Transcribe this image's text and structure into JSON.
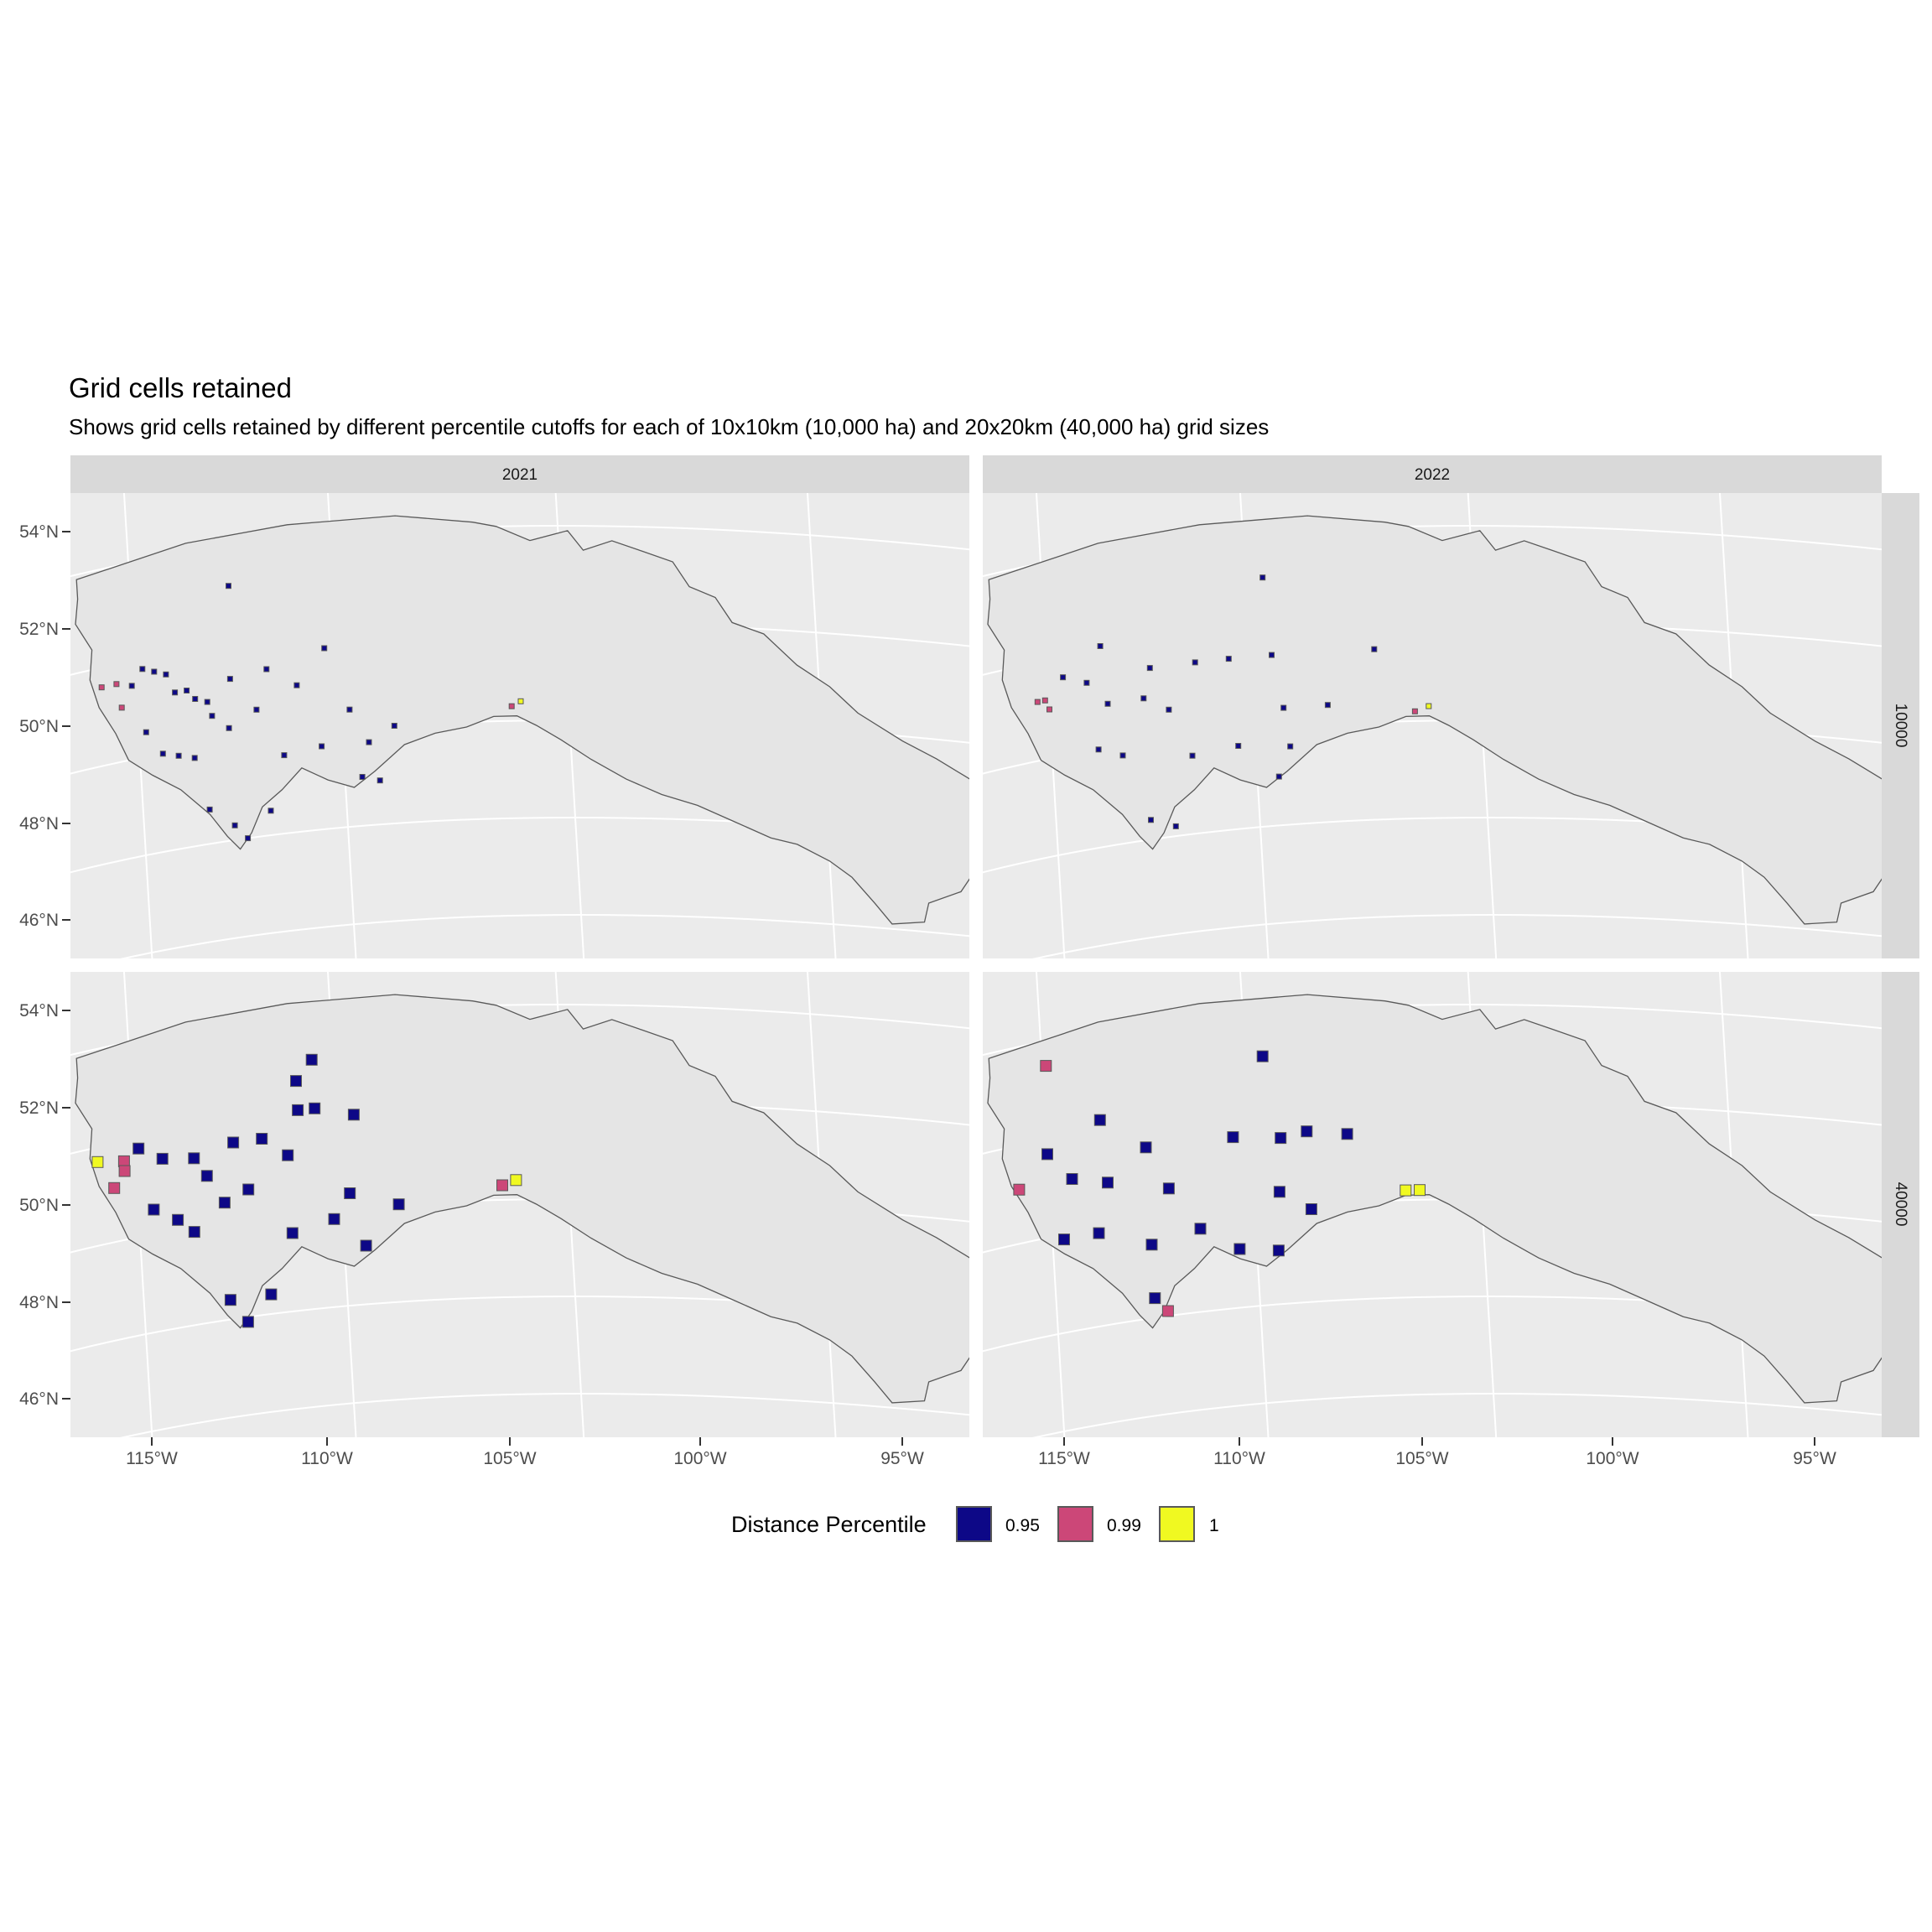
{
  "title": "Grid cells retained",
  "subtitle": "Shows grid cells retained by different percentile cutoffs for each of 10x10km (10,000 ha) and 20x20km (40,000 ha) grid sizes",
  "facets": {
    "columns": [
      "2021",
      "2022"
    ],
    "rows": [
      "10000",
      "40000"
    ]
  },
  "axes": {
    "y_ticks": [
      "54°N",
      "52°N",
      "50°N",
      "48°N",
      "46°N"
    ],
    "x_ticks": [
      "115°W",
      "110°W",
      "105°W",
      "100°W",
      "95°W"
    ]
  },
  "legend": {
    "title": "Distance Percentile",
    "items": [
      {
        "label": "0.95",
        "color": "#0d0887"
      },
      {
        "label": "0.99",
        "color": "#cc4778"
      },
      {
        "label": "1",
        "color": "#f0f921"
      }
    ]
  },
  "colors": {
    "panel_background": "#ebebeb",
    "grid_line": "#ffffff",
    "strip_background": "#d9d9d9",
    "region_fill": "#e5e5e5",
    "region_outline": "#595959"
  },
  "chart_data": {
    "type": "map",
    "projection": "conic (graticule curved)",
    "region": "Canadian Prairie provinces (Alberta, Saskatchewan, Manitoba)",
    "latitude_range": [
      45.5,
      55
    ],
    "longitude_range": [
      -117,
      -93
    ],
    "fill_variable": "Distance Percentile",
    "panels": [
      {
        "year": "2021",
        "grid_size_ha": "10000",
        "cells": [
          {
            "lon": -112.5,
            "lat": 53.2,
            "p": "0.95"
          },
          {
            "lon": -115.9,
            "lat": 51.6,
            "p": "0.99"
          },
          {
            "lon": -115.5,
            "lat": 51.6,
            "p": "0.99"
          },
          {
            "lon": -115.4,
            "lat": 51.1,
            "p": "0.99"
          },
          {
            "lon": -115.1,
            "lat": 51.5,
            "p": "0.95"
          },
          {
            "lon": -114.8,
            "lat": 51.8,
            "p": "0.95"
          },
          {
            "lon": -114.5,
            "lat": 51.7,
            "p": "0.95"
          },
          {
            "lon": -114.2,
            "lat": 51.6,
            "p": "0.95"
          },
          {
            "lon": -114.0,
            "lat": 51.2,
            "p": "0.95"
          },
          {
            "lon": -113.7,
            "lat": 51.2,
            "p": "0.95"
          },
          {
            "lon": -113.5,
            "lat": 51.0,
            "p": "0.95"
          },
          {
            "lon": -113.2,
            "lat": 50.9,
            "p": "0.95"
          },
          {
            "lon": -112.6,
            "lat": 51.3,
            "p": "0.95"
          },
          {
            "lon": -111.7,
            "lat": 51.4,
            "p": "0.95"
          },
          {
            "lon": -110.3,
            "lat": 51.7,
            "p": "0.95"
          },
          {
            "lon": -111.0,
            "lat": 51.0,
            "p": "0.95"
          },
          {
            "lon": -114.8,
            "lat": 50.5,
            "p": "0.95"
          },
          {
            "lon": -114.4,
            "lat": 50.0,
            "p": "0.95"
          },
          {
            "lon": -114.0,
            "lat": 49.9,
            "p": "0.95"
          },
          {
            "lon": -113.6,
            "lat": 49.8,
            "p": "0.95"
          },
          {
            "lon": -113.1,
            "lat": 50.6,
            "p": "0.95"
          },
          {
            "lon": -112.7,
            "lat": 50.3,
            "p": "0.95"
          },
          {
            "lon": -112.0,
            "lat": 50.6,
            "p": "0.95"
          },
          {
            "lon": -111.4,
            "lat": 49.6,
            "p": "0.95"
          },
          {
            "lon": -110.5,
            "lat": 49.7,
            "p": "0.95"
          },
          {
            "lon": -109.8,
            "lat": 50.4,
            "p": "0.95"
          },
          {
            "lon": -109.4,
            "lat": 49.7,
            "p": "0.95"
          },
          {
            "lon": -108.8,
            "lat": 50.0,
            "p": "0.95"
          },
          {
            "lon": -109.6,
            "lat": 49.0,
            "p": "0.95"
          },
          {
            "lon": -109.2,
            "lat": 48.9,
            "p": "0.95"
          },
          {
            "lon": -113.3,
            "lat": 48.7,
            "p": "0.95"
          },
          {
            "lon": -112.7,
            "lat": 48.3,
            "p": "0.95"
          },
          {
            "lon": -111.8,
            "lat": 48.5,
            "p": "0.95"
          },
          {
            "lon": -112.4,
            "lat": 48.0,
            "p": "0.95"
          },
          {
            "lon": -106.2,
            "lat": 50.3,
            "p": "0.99"
          },
          {
            "lon": -106.0,
            "lat": 50.4,
            "p": "1"
          }
        ]
      },
      {
        "year": "2022",
        "grid_size_ha": "10000",
        "cells": [
          {
            "lon": -109.6,
            "lat": 53.1,
            "p": "0.95"
          },
          {
            "lon": -113.6,
            "lat": 52.1,
            "p": "0.95"
          },
          {
            "lon": -115.3,
            "lat": 51.2,
            "p": "0.99"
          },
          {
            "lon": -115.1,
            "lat": 51.2,
            "p": "0.99"
          },
          {
            "lon": -115.0,
            "lat": 51.0,
            "p": "0.99"
          },
          {
            "lon": -114.6,
            "lat": 51.6,
            "p": "0.95"
          },
          {
            "lon": -114.0,
            "lat": 51.4,
            "p": "0.95"
          },
          {
            "lon": -112.4,
            "lat": 51.5,
            "p": "0.95"
          },
          {
            "lon": -111.3,
            "lat": 51.5,
            "p": "0.95"
          },
          {
            "lon": -110.5,
            "lat": 51.5,
            "p": "0.95"
          },
          {
            "lon": -109.5,
            "lat": 51.5,
            "p": "0.95"
          },
          {
            "lon": -107.2,
            "lat": 51.5,
            "p": "0.95"
          },
          {
            "lon": -113.5,
            "lat": 50.9,
            "p": "0.95"
          },
          {
            "lon": -112.6,
            "lat": 50.9,
            "p": "0.95"
          },
          {
            "lon": -112.0,
            "lat": 50.6,
            "p": "0.95"
          },
          {
            "lon": -113.8,
            "lat": 50.0,
            "p": "0.95"
          },
          {
            "lon": -113.2,
            "lat": 49.8,
            "p": "0.95"
          },
          {
            "lon": -111.5,
            "lat": 49.6,
            "p": "0.95"
          },
          {
            "lon": -110.4,
            "lat": 49.7,
            "p": "0.95"
          },
          {
            "lon": -109.3,
            "lat": 50.4,
            "p": "0.95"
          },
          {
            "lon": -108.3,
            "lat": 50.4,
            "p": "0.95"
          },
          {
            "lon": -109.2,
            "lat": 49.6,
            "p": "0.95"
          },
          {
            "lon": -109.5,
            "lat": 49.0,
            "p": "0.95"
          },
          {
            "lon": -112.6,
            "lat": 48.4,
            "p": "0.95"
          },
          {
            "lon": -112.0,
            "lat": 48.2,
            "p": "0.95"
          },
          {
            "lon": -106.4,
            "lat": 50.2,
            "p": "0.99"
          },
          {
            "lon": -106.1,
            "lat": 50.3,
            "p": "1"
          }
        ]
      },
      {
        "year": "2021",
        "grid_size_ha": "40000",
        "cells": [
          {
            "lon": -110.5,
            "lat": 53.1,
            "p": "0.95"
          },
          {
            "lon": -110.9,
            "lat": 52.7,
            "p": "0.95"
          },
          {
            "lon": -110.9,
            "lat": 52.1,
            "p": "0.95"
          },
          {
            "lon": -110.5,
            "lat": 52.1,
            "p": "0.95"
          },
          {
            "lon": -109.6,
            "lat": 51.9,
            "p": "0.95"
          },
          {
            "lon": -116.0,
            "lat": 51.7,
            "p": "1"
          },
          {
            "lon": -115.3,
            "lat": 51.6,
            "p": "0.99"
          },
          {
            "lon": -115.3,
            "lat": 51.4,
            "p": "0.99"
          },
          {
            "lon": -115.6,
            "lat": 51.1,
            "p": "0.99"
          },
          {
            "lon": -114.9,
            "lat": 51.8,
            "p": "0.95"
          },
          {
            "lon": -114.3,
            "lat": 51.5,
            "p": "0.95"
          },
          {
            "lon": -113.5,
            "lat": 51.4,
            "p": "0.95"
          },
          {
            "lon": -113.2,
            "lat": 51.0,
            "p": "0.95"
          },
          {
            "lon": -112.5,
            "lat": 51.6,
            "p": "0.95"
          },
          {
            "lon": -111.8,
            "lat": 51.6,
            "p": "0.95"
          },
          {
            "lon": -111.2,
            "lat": 51.2,
            "p": "0.95"
          },
          {
            "lon": -114.6,
            "lat": 50.5,
            "p": "0.95"
          },
          {
            "lon": -114.0,
            "lat": 50.2,
            "p": "0.95"
          },
          {
            "lon": -113.6,
            "lat": 49.9,
            "p": "0.95"
          },
          {
            "lon": -112.8,
            "lat": 50.4,
            "p": "0.95"
          },
          {
            "lon": -112.2,
            "lat": 50.6,
            "p": "0.95"
          },
          {
            "lon": -111.2,
            "lat": 49.6,
            "p": "0.95"
          },
          {
            "lon": -110.2,
            "lat": 49.8,
            "p": "0.95"
          },
          {
            "lon": -109.8,
            "lat": 50.3,
            "p": "0.95"
          },
          {
            "lon": -108.7,
            "lat": 50.0,
            "p": "0.95"
          },
          {
            "lon": -109.5,
            "lat": 49.2,
            "p": "0.95"
          },
          {
            "lon": -112.8,
            "lat": 48.4,
            "p": "0.95"
          },
          {
            "lon": -112.4,
            "lat": 47.9,
            "p": "0.95"
          },
          {
            "lon": -111.8,
            "lat": 48.4,
            "p": "0.95"
          },
          {
            "lon": -106.4,
            "lat": 50.3,
            "p": "0.99"
          },
          {
            "lon": -106.1,
            "lat": 50.4,
            "p": "1"
          }
        ]
      },
      {
        "year": "2022",
        "grid_size_ha": "40000",
        "cells": [
          {
            "lon": -114.9,
            "lat": 53.5,
            "p": "0.99"
          },
          {
            "lon": -109.6,
            "lat": 53.1,
            "p": "0.95"
          },
          {
            "lon": -113.6,
            "lat": 52.2,
            "p": "0.95"
          },
          {
            "lon": -115.8,
            "lat": 51.1,
            "p": "0.99"
          },
          {
            "lon": -115.0,
            "lat": 51.7,
            "p": "0.95"
          },
          {
            "lon": -114.4,
            "lat": 51.1,
            "p": "0.95"
          },
          {
            "lon": -113.5,
            "lat": 50.9,
            "p": "0.95"
          },
          {
            "lon": -112.5,
            "lat": 51.5,
            "p": "0.95"
          },
          {
            "lon": -112.0,
            "lat": 50.6,
            "p": "0.95"
          },
          {
            "lon": -110.4,
            "lat": 51.5,
            "p": "0.95"
          },
          {
            "lon": -109.3,
            "lat": 51.4,
            "p": "0.95"
          },
          {
            "lon": -108.7,
            "lat": 51.5,
            "p": "0.95"
          },
          {
            "lon": -107.8,
            "lat": 51.4,
            "p": "0.95"
          },
          {
            "lon": -114.7,
            "lat": 49.9,
            "p": "0.95"
          },
          {
            "lon": -113.8,
            "lat": 49.9,
            "p": "0.95"
          },
          {
            "lon": -112.5,
            "lat": 49.5,
            "p": "0.95"
          },
          {
            "lon": -111.3,
            "lat": 49.7,
            "p": "0.95"
          },
          {
            "lon": -110.4,
            "lat": 49.2,
            "p": "0.95"
          },
          {
            "lon": -109.4,
            "lat": 50.3,
            "p": "0.95"
          },
          {
            "lon": -108.7,
            "lat": 49.9,
            "p": "0.95"
          },
          {
            "lon": -109.5,
            "lat": 49.1,
            "p": "0.95"
          },
          {
            "lon": -112.2,
            "lat": 48.1,
            "p": "0.99"
          },
          {
            "lon": -112.5,
            "lat": 48.4,
            "p": "0.95"
          },
          {
            "lon": -106.6,
            "lat": 50.2,
            "p": "1"
          },
          {
            "lon": -106.3,
            "lat": 50.2,
            "p": "1"
          }
        ]
      }
    ]
  }
}
